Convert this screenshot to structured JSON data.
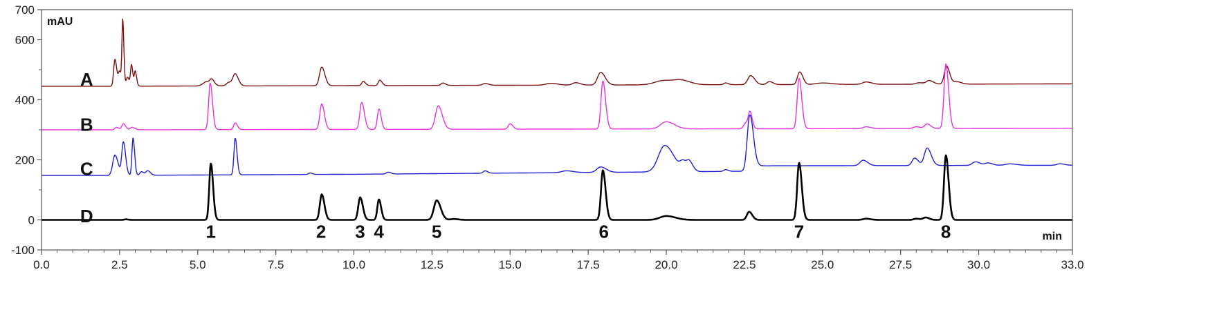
{
  "chart_data": {
    "type": "line",
    "title": "",
    "xlabel": "min",
    "ylabel": "mAU",
    "xlim": [
      0,
      33
    ],
    "ylim": [
      -100,
      700
    ],
    "x_ticks": [
      0,
      2.5,
      5,
      7.5,
      10,
      12.5,
      15,
      17.5,
      20,
      22.5,
      25,
      27.5,
      30,
      33
    ],
    "x_tick_labels": [
      "0.0",
      "2.5",
      "5.0",
      "7.5",
      "10.0",
      "12.5",
      "15.0",
      "17.5",
      "20.0",
      "22.5",
      "25.0",
      "27.5",
      "30.0",
      "33.0"
    ],
    "y_ticks": [
      -100,
      0,
      200,
      400,
      600,
      700
    ],
    "y_tick_labels": [
      "-100",
      "0",
      "200",
      "400",
      "600",
      "700"
    ],
    "grid": false,
    "series": [
      {
        "name": "A",
        "color": "#7b1111",
        "baseline": [
          [
            0,
            445
          ],
          [
            2.0,
            445
          ],
          [
            33,
            453
          ]
        ],
        "peaks": [
          [
            2.35,
            90,
            0.04
          ],
          [
            2.5,
            48,
            0.04
          ],
          [
            2.6,
            215,
            0.025
          ],
          [
            2.75,
            30,
            0.04
          ],
          [
            2.88,
            70,
            0.03
          ],
          [
            3.0,
            50,
            0.03
          ],
          [
            5.3,
            15,
            0.12
          ],
          [
            5.45,
            14,
            0.05
          ],
          [
            6.0,
            12,
            0.08
          ],
          [
            6.2,
            38,
            0.07
          ],
          [
            8.97,
            62,
            0.07
          ],
          [
            10.3,
            14,
            0.05
          ],
          [
            10.83,
            18,
            0.05
          ],
          [
            12.85,
            8,
            0.06
          ],
          [
            14.2,
            6,
            0.08
          ],
          [
            16.3,
            6,
            0.15
          ],
          [
            17.1,
            8,
            0.1
          ],
          [
            17.9,
            42,
            0.1
          ],
          [
            19.95,
            15,
            0.3
          ],
          [
            20.5,
            10,
            0.2
          ],
          [
            21.9,
            6,
            0.06
          ],
          [
            22.7,
            30,
            0.09
          ],
          [
            23.3,
            10,
            0.08
          ],
          [
            24.27,
            42,
            0.07
          ],
          [
            25.0,
            5,
            0.2
          ],
          [
            26.4,
            8,
            0.12
          ],
          [
            28.1,
            5,
            0.1
          ],
          [
            28.42,
            12,
            0.09
          ],
          [
            28.97,
            60,
            0.07
          ],
          [
            29.3,
            8,
            0.1
          ]
        ]
      },
      {
        "name": "B",
        "color": "#e832e0",
        "baseline": [
          [
            0,
            300
          ],
          [
            2.0,
            300
          ],
          [
            33,
            305
          ]
        ],
        "peaks": [
          [
            2.4,
            8,
            0.05
          ],
          [
            2.62,
            20,
            0.05
          ],
          [
            2.9,
            8,
            0.06
          ],
          [
            5.4,
            155,
            0.05
          ],
          [
            6.2,
            22,
            0.05
          ],
          [
            8.97,
            85,
            0.06
          ],
          [
            10.25,
            90,
            0.06
          ],
          [
            10.8,
            68,
            0.05
          ],
          [
            12.7,
            78,
            0.09
          ],
          [
            15.0,
            18,
            0.06
          ],
          [
            17.97,
            160,
            0.06
          ],
          [
            20.0,
            24,
            0.18
          ],
          [
            22.55,
            20,
            0.07
          ],
          [
            22.68,
            50,
            0.05
          ],
          [
            24.25,
            168,
            0.06
          ],
          [
            26.4,
            6,
            0.1
          ],
          [
            28.0,
            6,
            0.09
          ],
          [
            28.35,
            15,
            0.08
          ],
          [
            28.95,
            215,
            0.06
          ]
        ]
      },
      {
        "name": "C",
        "color": "#1f1fd6",
        "baseline": [
          [
            0,
            148
          ],
          [
            2.2,
            148
          ],
          [
            10,
            152
          ],
          [
            22.5,
            162
          ],
          [
            22.75,
            180
          ],
          [
            33,
            182
          ]
        ],
        "peaks": [
          [
            2.35,
            68,
            0.07
          ],
          [
            2.62,
            110,
            0.05
          ],
          [
            2.93,
            125,
            0.035
          ],
          [
            3.2,
            12,
            0.05
          ],
          [
            3.4,
            15,
            0.06
          ],
          [
            6.2,
            122,
            0.04
          ],
          [
            8.6,
            5,
            0.05
          ],
          [
            11.1,
            6,
            0.06
          ],
          [
            14.2,
            8,
            0.06
          ],
          [
            16.8,
            6,
            0.15
          ],
          [
            17.9,
            18,
            0.12
          ],
          [
            19.95,
            88,
            0.2
          ],
          [
            20.55,
            28,
            0.1
          ],
          [
            20.75,
            25,
            0.08
          ],
          [
            21.9,
            6,
            0.06
          ],
          [
            22.67,
            175,
            0.08
          ],
          [
            26.3,
            18,
            0.1
          ],
          [
            27.95,
            25,
            0.08
          ],
          [
            28.35,
            58,
            0.09
          ],
          [
            29.9,
            12,
            0.1
          ],
          [
            30.3,
            8,
            0.1
          ],
          [
            31.0,
            5,
            0.15
          ],
          [
            32.6,
            5,
            0.1
          ]
        ]
      },
      {
        "name": "D",
        "color": "#000000",
        "baseline": [
          [
            0,
            0
          ],
          [
            33,
            0
          ]
        ],
        "peaks": [
          [
            2.7,
            2,
            0.05
          ],
          [
            5.42,
            188,
            0.05
          ],
          [
            8.97,
            85,
            0.06
          ],
          [
            10.2,
            75,
            0.06
          ],
          [
            10.8,
            68,
            0.05
          ],
          [
            12.65,
            65,
            0.09
          ],
          [
            13.2,
            3,
            0.1
          ],
          [
            17.97,
            165,
            0.06
          ],
          [
            20.0,
            13,
            0.2
          ],
          [
            22.65,
            27,
            0.07
          ],
          [
            24.25,
            190,
            0.06
          ],
          [
            26.4,
            4,
            0.1
          ],
          [
            28.0,
            4,
            0.08
          ],
          [
            28.3,
            8,
            0.08
          ],
          [
            28.95,
            215,
            0.06
          ]
        ]
      }
    ],
    "trace_labels": [
      {
        "text": "A",
        "x": 0.75,
        "y": 470
      },
      {
        "text": "B",
        "x": 0.75,
        "y": 320
      },
      {
        "text": "C",
        "x": 0.75,
        "y": 172
      },
      {
        "text": "D",
        "x": 0.75,
        "y": 15
      }
    ],
    "peak_labels": [
      {
        "text": "1",
        "x": 5.42
      },
      {
        "text": "2",
        "x": 8.95
      },
      {
        "text": "3",
        "x": 10.2
      },
      {
        "text": "4",
        "x": 10.8
      },
      {
        "text": "5",
        "x": 12.65
      },
      {
        "text": "6",
        "x": 18.0
      },
      {
        "text": "7",
        "x": 24.25
      },
      {
        "text": "8",
        "x": 28.95
      }
    ]
  }
}
